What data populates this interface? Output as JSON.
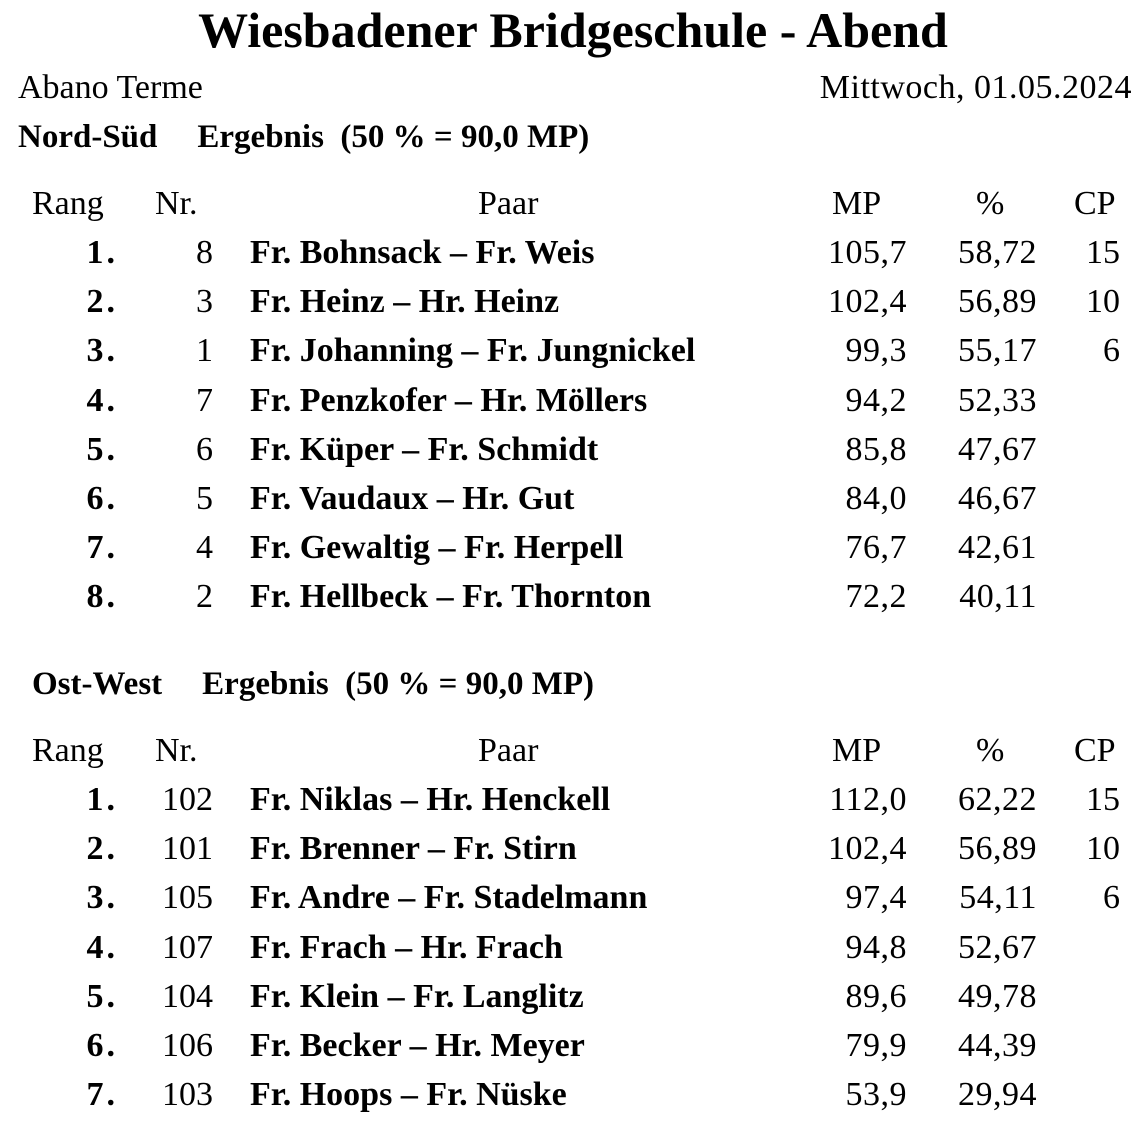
{
  "title": "Wiesbadener Bridgeschule - Abend",
  "venue": "Abano Terme",
  "date": "Mittwoch, 01.05.2024",
  "columns": {
    "rang": "Rang",
    "nr": "Nr.",
    "paar": "Paar",
    "mp": "MP",
    "pct": "%",
    "cp": "CP"
  },
  "sections": [
    {
      "name": "Nord-Süd",
      "result": "Ergebnis  (50 % = 90,0 MP)",
      "rows": [
        {
          "rang": "1.",
          "nr": "8",
          "paar": "Fr. Bohnsack – Fr. Weis",
          "mp": "105,7",
          "pct": "58,72",
          "cp": "15"
        },
        {
          "rang": "2.",
          "nr": "3",
          "paar": "Fr. Heinz – Hr. Heinz",
          "mp": "102,4",
          "pct": "56,89",
          "cp": "10"
        },
        {
          "rang": "3.",
          "nr": "1",
          "paar": "Fr. Johanning – Fr. Jungnickel",
          "mp": "99,3",
          "pct": "55,17",
          "cp": "6"
        },
        {
          "rang": "4.",
          "nr": "7",
          "paar": "Fr. Penzkofer – Hr. Möllers",
          "mp": "94,2",
          "pct": "52,33",
          "cp": ""
        },
        {
          "rang": "5.",
          "nr": "6",
          "paar": "Fr. Küper – Fr. Schmidt",
          "mp": "85,8",
          "pct": "47,67",
          "cp": ""
        },
        {
          "rang": "6.",
          "nr": "5",
          "paar": "Fr. Vaudaux – Hr. Gut",
          "mp": "84,0",
          "pct": "46,67",
          "cp": ""
        },
        {
          "rang": "7.",
          "nr": "4",
          "paar": "Fr. Gewaltig – Fr. Herpell",
          "mp": "76,7",
          "pct": "42,61",
          "cp": ""
        },
        {
          "rang": "8.",
          "nr": "2",
          "paar": "Fr. Hellbeck – Fr. Thornton",
          "mp": "72,2",
          "pct": "40,11",
          "cp": ""
        }
      ]
    },
    {
      "name": "Ost-West",
      "result": "Ergebnis  (50 % = 90,0 MP)",
      "rows": [
        {
          "rang": "1.",
          "nr": "102",
          "paar": "Fr. Niklas – Hr. Henckell",
          "mp": "112,0",
          "pct": "62,22",
          "cp": "15"
        },
        {
          "rang": "2.",
          "nr": "101",
          "paar": "Fr. Brenner – Fr. Stirn",
          "mp": "102,4",
          "pct": "56,89",
          "cp": "10"
        },
        {
          "rang": "3.",
          "nr": "105",
          "paar": "Fr. Andre – Fr. Stadelmann",
          "mp": "97,4",
          "pct": "54,11",
          "cp": "6"
        },
        {
          "rang": "4.",
          "nr": "107",
          "paar": "Fr. Frach – Hr. Frach",
          "mp": "94,8",
          "pct": "52,67",
          "cp": ""
        },
        {
          "rang": "5.",
          "nr": "104",
          "paar": "Fr. Klein – Fr. Langlitz",
          "mp": "89,6",
          "pct": "49,78",
          "cp": ""
        },
        {
          "rang": "6.",
          "nr": "106",
          "paar": "Fr. Becker – Hr. Meyer",
          "mp": "79,9",
          "pct": "44,39",
          "cp": ""
        },
        {
          "rang": "7.",
          "nr": "103",
          "paar": "Fr. Hoops – Fr. Nüske",
          "mp": "53,9",
          "pct": "29,94",
          "cp": ""
        }
      ]
    }
  ]
}
